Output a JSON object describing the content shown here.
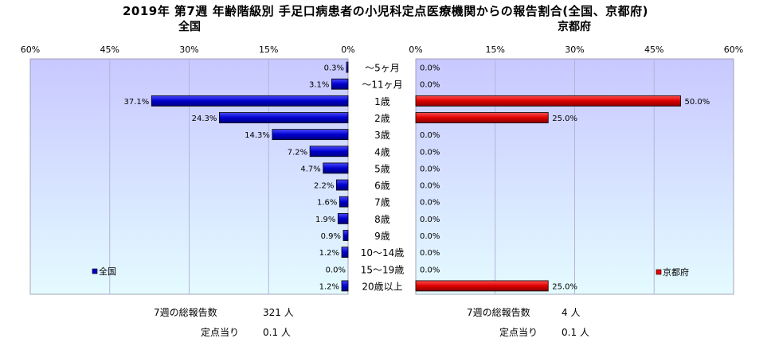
{
  "title": "2019年 第7週 年齢階級別 手足口病患者の小児科定点医療機関からの報告割合(全国、京都府)",
  "chart_data": [
    {
      "type": "bar",
      "orientation": "horizontal",
      "direction": "right-to-left",
      "title": "全国",
      "categories": [
        "〜5ヶ月",
        "〜11ヶ月",
        "1歳",
        "2歳",
        "3歳",
        "4歳",
        "5歳",
        "6歳",
        "7歳",
        "8歳",
        "9歳",
        "10〜14歳",
        "15〜19歳",
        "20歳以上"
      ],
      "series": [
        {
          "name": "全国",
          "color": "#0000cc",
          "values": [
            0.3,
            3.1,
            37.1,
            24.3,
            14.3,
            7.2,
            4.7,
            2.2,
            1.6,
            1.9,
            0.9,
            1.2,
            0.0,
            1.2
          ],
          "labels": [
            "0.3%",
            "3.1%",
            "37.1%",
            "24.3%",
            "14.3%",
            "7.2%",
            "4.7%",
            "2.2%",
            "1.6%",
            "1.9%",
            "0.9%",
            "1.2%",
            "0.0%",
            "1.2%"
          ]
        }
      ],
      "xlim": [
        0,
        60
      ],
      "ticks": [
        "60%",
        "45%",
        "30%",
        "15%",
        "0%"
      ],
      "grid": true,
      "legend": "bottom-left"
    },
    {
      "type": "bar",
      "orientation": "horizontal",
      "direction": "left-to-right",
      "title": "京都府",
      "categories": [
        "〜5ヶ月",
        "〜11ヶ月",
        "1歳",
        "2歳",
        "3歳",
        "4歳",
        "5歳",
        "6歳",
        "7歳",
        "8歳",
        "9歳",
        "10〜14歳",
        "15〜19歳",
        "20歳以上"
      ],
      "series": [
        {
          "name": "京都府",
          "color": "#ee0000",
          "values": [
            0.0,
            0.0,
            50.0,
            25.0,
            0.0,
            0.0,
            0.0,
            0.0,
            0.0,
            0.0,
            0.0,
            0.0,
            0.0,
            25.0
          ],
          "labels": [
            "0.0%",
            "0.0%",
            "50.0%",
            "25.0%",
            "0.0%",
            "0.0%",
            "0.0%",
            "0.0%",
            "0.0%",
            "0.0%",
            "0.0%",
            "0.0%",
            "0.0%",
            "25.0%"
          ]
        }
      ],
      "xlim": [
        0,
        60
      ],
      "ticks": [
        "0%",
        "15%",
        "30%",
        "45%",
        "60%"
      ],
      "grid": true,
      "legend": "bottom-right"
    }
  ],
  "footer": {
    "left": {
      "reports_label": "7週の総報告数",
      "reports_value": "321 人",
      "per_site_label": "定点当り",
      "per_site_value": "0.1 人"
    },
    "right": {
      "reports_label": "7週の総報告数",
      "reports_value": "4 人",
      "per_site_label": "定点当り",
      "per_site_value": "0.1 人"
    }
  },
  "colors": {
    "plot_top": "#c8c8ff",
    "plot_bottom": "#e4fbff",
    "grid": "#b4b4d8"
  }
}
